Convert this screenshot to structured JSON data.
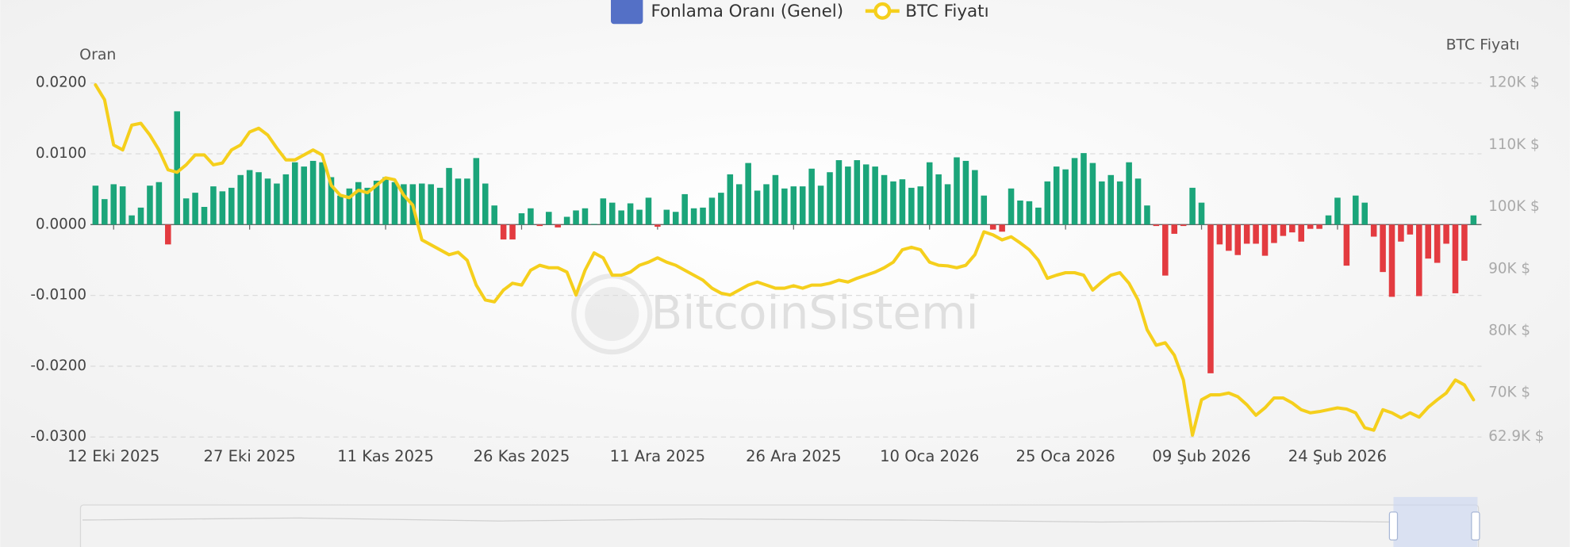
{
  "chart_data": {
    "type": "bar",
    "y_label": "Oran",
    "y2_label": "BTC Fiyatı",
    "watermark": "BitcoinSistemi",
    "grid": true,
    "legend": "top",
    "positive_color": "#1ba57a",
    "negative_color": "#e33b40",
    "categories": [
      null,
      null,
      "12 Eki 2025",
      null,
      null,
      null,
      null,
      null,
      null,
      null,
      null,
      null,
      null,
      null,
      null,
      null,
      null,
      "27 Eki 2025",
      null,
      null,
      null,
      null,
      null,
      null,
      null,
      null,
      null,
      null,
      null,
      null,
      null,
      null,
      "11 Kas 2025",
      null,
      null,
      null,
      null,
      null,
      null,
      null,
      null,
      null,
      null,
      null,
      null,
      null,
      null,
      "26 Kas 2025",
      null,
      null,
      null,
      null,
      null,
      null,
      null,
      null,
      null,
      null,
      null,
      null,
      null,
      null,
      "11 Ara 2025",
      null,
      null,
      null,
      null,
      null,
      null,
      null,
      null,
      null,
      null,
      null,
      null,
      null,
      null,
      "26 Ara 2025",
      null,
      null,
      null,
      null,
      null,
      null,
      null,
      null,
      null,
      null,
      null,
      null,
      null,
      null,
      "10 Oca 2026",
      null,
      null,
      null,
      null,
      null,
      null,
      null,
      null,
      null,
      null,
      null,
      null,
      null,
      null,
      "25 Oca 2026",
      null,
      null,
      null,
      null,
      null,
      null,
      null,
      null,
      null,
      null,
      null,
      null,
      null,
      null,
      "09 Şub 2026",
      null,
      null,
      null,
      null,
      null,
      null,
      null,
      null,
      null,
      null,
      null,
      null,
      null,
      null,
      "24 Şub 2026",
      null,
      null,
      null,
      null,
      null,
      null,
      null,
      null,
      null,
      null,
      null,
      null,
      null,
      null,
      null
    ],
    "ylim": [
      -0.03,
      0.02
    ],
    "yticks": [
      {
        "value": 0.02,
        "label": "0.0200"
      },
      {
        "value": 0.01,
        "label": "0.0100"
      },
      {
        "value": 0,
        "label": "0.0000"
      },
      {
        "value": -0.01,
        "label": "-0.0100"
      },
      {
        "value": -0.02,
        "label": "-0.0200"
      },
      {
        "value": -0.03,
        "label": "-0.0300"
      }
    ],
    "y2lim": [
      62900,
      120000
    ],
    "y2ticks": [
      {
        "value": 120000,
        "label": "120K $"
      },
      {
        "value": 110000,
        "label": "110K $"
      },
      {
        "value": 100000,
        "label": "100K $"
      },
      {
        "value": 90000,
        "label": "90K $"
      },
      {
        "value": 80000,
        "label": "80K $"
      },
      {
        "value": 70000,
        "label": "70K $"
      },
      {
        "value": 62900,
        "label": "62.9K $"
      }
    ],
    "series": [
      {
        "name": "Fonlama Oranı (Genel)",
        "type": "bar",
        "color": "#5470c6",
        "values": [
          0.0055,
          0.0036,
          0.0057,
          0.0054,
          0.0013,
          0.0024,
          0.0055,
          0.006,
          -0.0028,
          0.016,
          0.0037,
          0.0045,
          0.0025,
          0.0054,
          0.0047,
          0.0052,
          0.007,
          0.0077,
          0.0074,
          0.0065,
          0.0058,
          0.0071,
          0.0088,
          0.0082,
          0.009,
          0.0088,
          0.0067,
          0.0041,
          0.0051,
          0.006,
          0.0052,
          0.0062,
          0.0067,
          0.006,
          0.0057,
          0.0057,
          0.0058,
          0.0057,
          0.0052,
          0.008,
          0.0065,
          0.0065,
          0.0094,
          0.0058,
          0.0027,
          -0.0021,
          -0.0021,
          0.0016,
          0.0023,
          -0.0002,
          0.0018,
          -0.0004,
          0.0011,
          0.002,
          0.0023,
          0.0001,
          0.0037,
          0.0031,
          0.002,
          0.003,
          0.0021,
          0.0038,
          -0.0003,
          0.0021,
          0.0018,
          0.0043,
          0.0023,
          0.0024,
          0.0038,
          0.0045,
          0.0071,
          0.0057,
          0.0087,
          0.0048,
          0.0057,
          0.007,
          0.0051,
          0.0054,
          0.0054,
          0.0079,
          0.0055,
          0.0074,
          0.0091,
          0.0082,
          0.0091,
          0.0085,
          0.0082,
          0.007,
          0.0061,
          0.0064,
          0.0052,
          0.0054,
          0.0088,
          0.0071,
          0.0057,
          0.0095,
          0.009,
          0.0077,
          0.0041,
          -0.0007,
          -0.001,
          0.0051,
          0.0034,
          0.0033,
          0.0024,
          0.0061,
          0.0082,
          0.0078,
          0.0094,
          0.0101,
          0.0087,
          0.0061,
          0.007,
          0.0061,
          0.0088,
          0.0065,
          0.0027,
          -0.0002,
          -0.0072,
          -0.0013,
          -0.0002,
          0.0052,
          0.0031,
          -0.021,
          -0.0028,
          -0.0037,
          -0.0043,
          -0.0027,
          -0.0027,
          -0.0044,
          -0.0026,
          -0.0016,
          -0.0011,
          -0.0024,
          -0.0006,
          -0.0006,
          0.0013,
          0.0038,
          -0.0058,
          0.0041,
          0.0031,
          -0.0017,
          -0.0067,
          -0.0102,
          -0.0024,
          -0.0014,
          -0.0101,
          -0.0048,
          -0.0054,
          -0.0027,
          -0.0097,
          -0.0051,
          0.0013
        ]
      },
      {
        "name": "BTC Fiyatı",
        "type": "line",
        "color": "#f5cf1c",
        "axis": "y2",
        "values": [
          119700,
          117300,
          110000,
          109200,
          113200,
          113500,
          111600,
          109200,
          106000,
          105600,
          106800,
          108400,
          108400,
          106800,
          107100,
          109200,
          110000,
          112100,
          112700,
          111600,
          109500,
          107600,
          107600,
          108400,
          109200,
          108400,
          103500,
          101900,
          101500,
          102700,
          102300,
          103500,
          104700,
          104400,
          101900,
          100300,
          94700,
          93900,
          93100,
          92300,
          92700,
          91400,
          87400,
          85000,
          84700,
          86600,
          87700,
          87400,
          89800,
          90600,
          90200,
          90200,
          89500,
          85800,
          89800,
          92600,
          91800,
          89000,
          89000,
          89500,
          90600,
          91100,
          91800,
          91100,
          90600,
          89800,
          89000,
          88200,
          86900,
          86100,
          85800,
          86600,
          87400,
          87900,
          87400,
          86900,
          86900,
          87300,
          86900,
          87400,
          87400,
          87700,
          88200,
          87900,
          88500,
          89000,
          89500,
          90200,
          91100,
          93100,
          93500,
          93100,
          91100,
          90600,
          90500,
          90200,
          90600,
          92300,
          96000,
          95500,
          94700,
          95200,
          94200,
          93100,
          91400,
          88500,
          89000,
          89400,
          89400,
          89000,
          86600,
          87900,
          89000,
          89400,
          87700,
          85000,
          80200,
          77700,
          78100,
          76100,
          72100,
          63200,
          68900,
          69700,
          69700,
          70000,
          69400,
          68100,
          66400,
          67600,
          69200,
          69200,
          68400,
          67300,
          66800,
          67000,
          67300,
          67600,
          67400,
          66800,
          64400,
          64000,
          67300,
          66800,
          66000,
          66800,
          66100,
          67700,
          68900,
          70000,
          72100,
          71300,
          68900
        ]
      }
    ]
  }
}
